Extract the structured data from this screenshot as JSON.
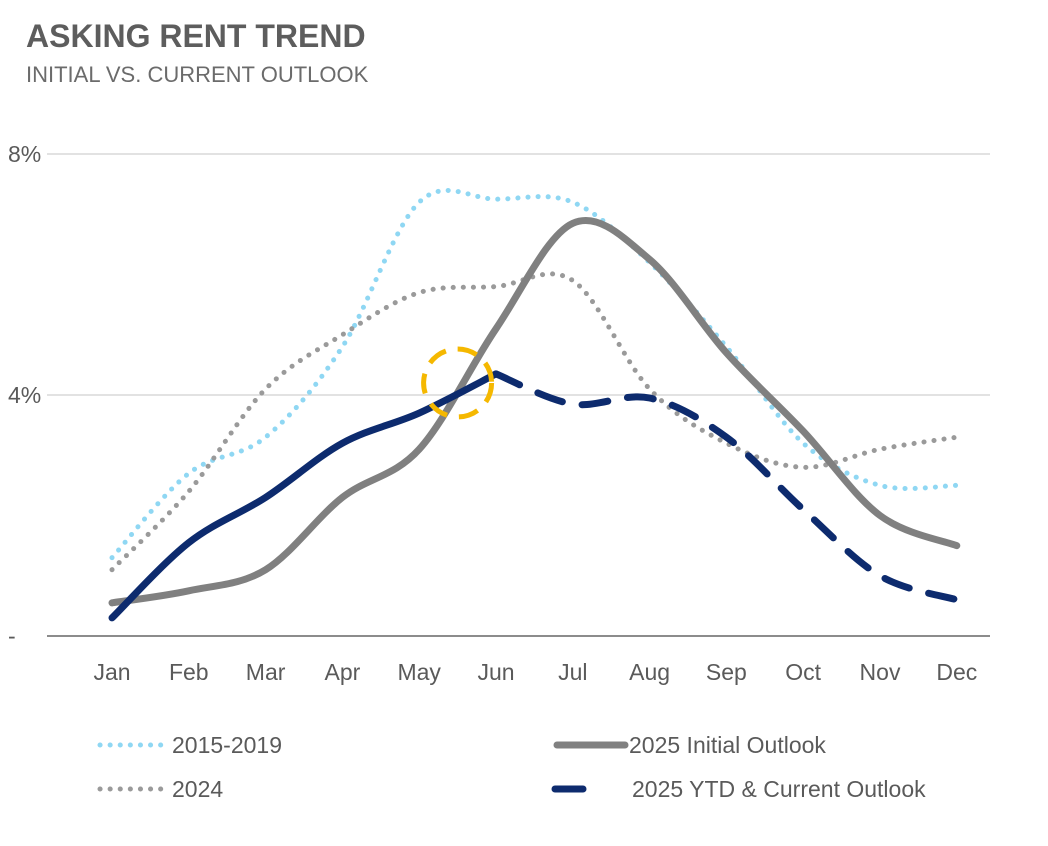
{
  "chart_data": {
    "type": "line",
    "title": "ASKING RENT TREND",
    "subtitle": "INITIAL VS. CURRENT OUTLOOK",
    "categories": [
      "Jan",
      "Feb",
      "Mar",
      "Apr",
      "May",
      "Jun",
      "Jul",
      "Aug",
      "Sep",
      "Oct",
      "Nov",
      "Dec"
    ],
    "y_ticks": [
      {
        "value": 0,
        "label": "-"
      },
      {
        "value": 4,
        "label": "4%"
      },
      {
        "value": 8,
        "label": "8%"
      }
    ],
    "ylim": [
      0,
      8
    ],
    "grid": "horizontal",
    "legend_position": "bottom",
    "series": [
      {
        "name": "2015-2019",
        "style": "dotted",
        "color": "#8fd7f3",
        "values": [
          1.3,
          2.7,
          3.3,
          4.8,
          7.2,
          7.25,
          7.2,
          6.2,
          4.8,
          3.2,
          2.5,
          2.5
        ]
      },
      {
        "name": "2024",
        "style": "dotted",
        "color": "#9a9a9a",
        "values": [
          1.1,
          2.4,
          4.1,
          5.0,
          5.7,
          5.8,
          5.9,
          4.1,
          3.2,
          2.8,
          3.1,
          3.3
        ]
      },
      {
        "name": "2025 Initial Outlook",
        "style": "solid",
        "color": "#808080",
        "values": [
          0.55,
          0.75,
          1.1,
          2.3,
          3.1,
          5.1,
          6.85,
          6.25,
          4.7,
          3.4,
          2.0,
          1.5
        ]
      },
      {
        "name": "2025 YTD & Current Outlook",
        "style": "dashed",
        "color": "#0d2b6e",
        "values": [
          0.3,
          1.55,
          2.3,
          3.2,
          3.7,
          4.35,
          3.85,
          3.95,
          3.3,
          2.1,
          1.0,
          0.6
        ]
      }
    ],
    "highlight": {
      "color": "#f5b800"
    }
  }
}
